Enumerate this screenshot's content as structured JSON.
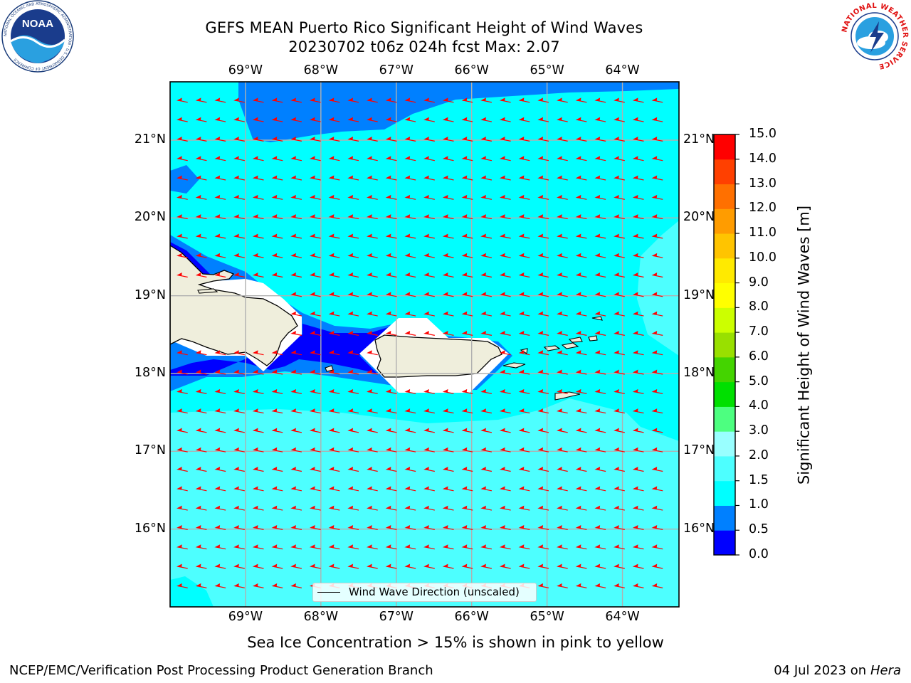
{
  "header": {
    "title_line1": "GEFS MEAN Puerto Rico Significant Height of Wind Waves",
    "title_line2": "20230702 t06z 024h fcst   Max: 2.07"
  },
  "logos": {
    "left": {
      "name": "noaa-logo",
      "text": "NOAA",
      "ring_text": "NATIONAL OCEANIC AND ATMOSPHERIC ADMINISTRATION · U.S. DEPARTMENT OF COMMERCE"
    },
    "right": {
      "name": "nws-logo",
      "ring_text": "NATIONAL WEATHER SERVICE"
    }
  },
  "map": {
    "extent": {
      "lon_min": -70.0,
      "lon_max": -63.25,
      "lat_min": 15.0,
      "lat_max": 21.75
    },
    "lon_ticks": [
      {
        "value": -69,
        "label": "69°W"
      },
      {
        "value": -68,
        "label": "68°W"
      },
      {
        "value": -67,
        "label": "67°W"
      },
      {
        "value": -66,
        "label": "66°W"
      },
      {
        "value": -65,
        "label": "65°W"
      },
      {
        "value": -64,
        "label": "64°W"
      }
    ],
    "lat_ticks": [
      {
        "value": 21,
        "label": "21°N"
      },
      {
        "value": 20,
        "label": "20°N"
      },
      {
        "value": 19,
        "label": "19°N"
      },
      {
        "value": 18,
        "label": "18°N"
      },
      {
        "value": 17,
        "label": "17°N"
      },
      {
        "value": 16,
        "label": "16°N"
      }
    ],
    "grid": true,
    "vector_color": "#ff0000",
    "legend": {
      "label": "Wind Wave Direction (unscaled)",
      "placement": "bottom-center"
    }
  },
  "colorbar": {
    "title": "Significant Height of Wind Waves [m]",
    "levels": [
      0.0,
      0.5,
      1.0,
      1.5,
      2.0,
      3.0,
      4.0,
      5.0,
      6.0,
      7.0,
      8.0,
      9.0,
      10.0,
      11.0,
      12.0,
      13.0,
      14.0,
      15.0
    ],
    "tick_labels": [
      "0.0",
      "0.5",
      "1.0",
      "1.5",
      "2.0",
      "3.0",
      "4.0",
      "5.0",
      "6.0",
      "7.0",
      "8.0",
      "9.0",
      "10.0",
      "11.0",
      "12.0",
      "13.0",
      "14.0",
      "15.0"
    ],
    "colors": [
      "#0000ff",
      "#0080ff",
      "#00ffff",
      "#4dffff",
      "#99ffff",
      "#4dff80",
      "#00e000",
      "#44d400",
      "#99e000",
      "#ccff00",
      "#ffff00",
      "#ffea00",
      "#ffc400",
      "#ff9c00",
      "#ff7000",
      "#ff4000",
      "#ff0000"
    ]
  },
  "note": "Sea Ice Concentration > 15% is shown in pink to yellow",
  "footer": {
    "left": "NCEP/EMC/Verification Post Processing Product Generation Branch",
    "right_date": "04 Jul 2023 on ",
    "right_host": "Hera"
  }
}
